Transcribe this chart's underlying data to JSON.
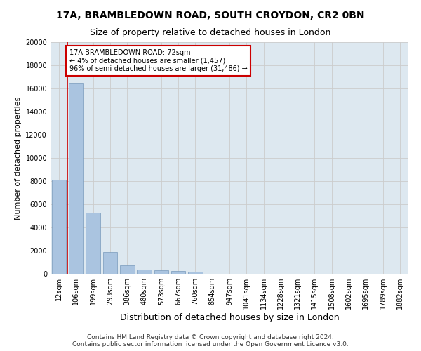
{
  "title": "17A, BRAMBLEDOWN ROAD, SOUTH CROYDON, CR2 0BN",
  "subtitle": "Size of property relative to detached houses in London",
  "xlabel": "Distribution of detached houses by size in London",
  "ylabel": "Number of detached properties",
  "categories": [
    "12sqm",
    "106sqm",
    "199sqm",
    "293sqm",
    "386sqm",
    "480sqm",
    "573sqm",
    "667sqm",
    "760sqm",
    "854sqm",
    "947sqm",
    "1041sqm",
    "1134sqm",
    "1228sqm",
    "1321sqm",
    "1415sqm",
    "1508sqm",
    "1602sqm",
    "1695sqm",
    "1789sqm",
    "1882sqm"
  ],
  "values": [
    8100,
    16500,
    5300,
    1850,
    700,
    370,
    280,
    230,
    210,
    0,
    0,
    0,
    0,
    0,
    0,
    0,
    0,
    0,
    0,
    0,
    0
  ],
  "bar_color": "#aac4e0",
  "bar_edge_color": "#7799bb",
  "annotation_text": "17A BRAMBLEDOWN ROAD: 72sqm\n← 4% of detached houses are smaller (1,457)\n96% of semi-detached houses are larger (31,486) →",
  "annotation_box_color": "#ffffff",
  "annotation_box_edge_color": "#cc0000",
  "vline_color": "#cc0000",
  "ylim": [
    0,
    20000
  ],
  "yticks": [
    0,
    2000,
    4000,
    6000,
    8000,
    10000,
    12000,
    14000,
    16000,
    18000,
    20000
  ],
  "grid_color": "#cccccc",
  "bg_color": "#dde8f0",
  "fig_bg_color": "#ffffff",
  "footer_text": "Contains HM Land Registry data © Crown copyright and database right 2024.\nContains public sector information licensed under the Open Government Licence v3.0.",
  "title_fontsize": 10,
  "subtitle_fontsize": 9,
  "xlabel_fontsize": 9,
  "ylabel_fontsize": 8,
  "tick_fontsize": 7,
  "footer_fontsize": 6.5
}
